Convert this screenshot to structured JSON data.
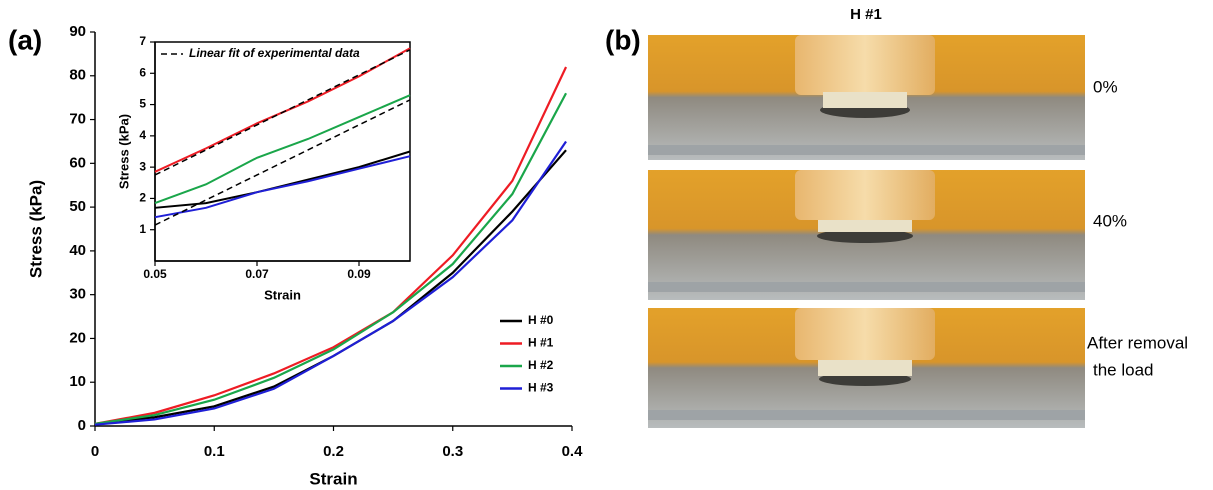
{
  "chart_data": [
    {
      "type": "line",
      "xlabel": "Strain",
      "ylabel": "Stress (kPa)",
      "x": [
        0,
        0.05,
        0.1,
        0.15,
        0.2,
        0.25,
        0.3,
        0.35,
        0.395
      ],
      "xlim": [
        0,
        0.4
      ],
      "xticks": [
        0,
        0.1,
        0.2,
        0.3,
        0.4
      ],
      "ylim": [
        0,
        90
      ],
      "yticks": [
        0,
        10,
        20,
        30,
        40,
        50,
        60,
        70,
        80,
        90
      ],
      "legend": "lower right",
      "series": [
        {
          "name": "H #0",
          "color": "#000000",
          "values": [
            0.5,
            2,
            4.5,
            9,
            16,
            24,
            35,
            49,
            63
          ]
        },
        {
          "name": "H #1",
          "color": "#ee1c24",
          "values": [
            0.5,
            3,
            7,
            12,
            18,
            26,
            39,
            56,
            82
          ]
        },
        {
          "name": "H #2",
          "color": "#1aa64a",
          "values": [
            0.5,
            2.5,
            6,
            11,
            17.5,
            26,
            37,
            53,
            76
          ]
        },
        {
          "name": "H #3",
          "color": "#1f1fd6",
          "values": [
            0.3,
            1.5,
            4,
            8.5,
            16,
            24,
            34,
            47,
            65
          ]
        }
      ]
    },
    {
      "type": "line",
      "xlabel": "Strain",
      "ylabel": "Stress (kPa)",
      "x": [
        0.05,
        0.06,
        0.07,
        0.08,
        0.09,
        0.1
      ],
      "xlim": [
        0.05,
        0.1
      ],
      "xticks": [
        0.05,
        0.07,
        0.09
      ],
      "ylim": [
        0,
        7
      ],
      "yticks": [
        1,
        2,
        3,
        4,
        5,
        6,
        7
      ],
      "legend": "upper left",
      "series": [
        {
          "color": "#000000",
          "values": [
            1.7,
            1.85,
            2.2,
            2.6,
            3.0,
            3.5
          ]
        },
        {
          "color": "#ee1c24",
          "values": [
            2.85,
            3.6,
            4.4,
            5.1,
            5.9,
            6.8
          ]
        },
        {
          "color": "#1aa64a",
          "values": [
            1.85,
            2.45,
            3.3,
            3.9,
            4.6,
            5.3
          ]
        },
        {
          "color": "#1f1fd6",
          "values": [
            1.4,
            1.7,
            2.2,
            2.55,
            2.95,
            3.35
          ]
        },
        {
          "name": "Linear fit of experimental data",
          "color": "#000000",
          "dashed": true,
          "values": [
            2.75,
            3.55,
            4.35,
            5.15,
            5.95,
            6.75
          ]
        },
        {
          "color": "#000000",
          "dashed": true,
          "values": [
            1.15,
            1.95,
            2.75,
            3.55,
            4.35,
            5.15
          ]
        }
      ]
    }
  ],
  "panels": {
    "a": "(a)",
    "b": "(b)"
  },
  "photos": {
    "title": "H #1",
    "captions": [
      "0%",
      "40%",
      "After removal",
      "the load"
    ]
  }
}
